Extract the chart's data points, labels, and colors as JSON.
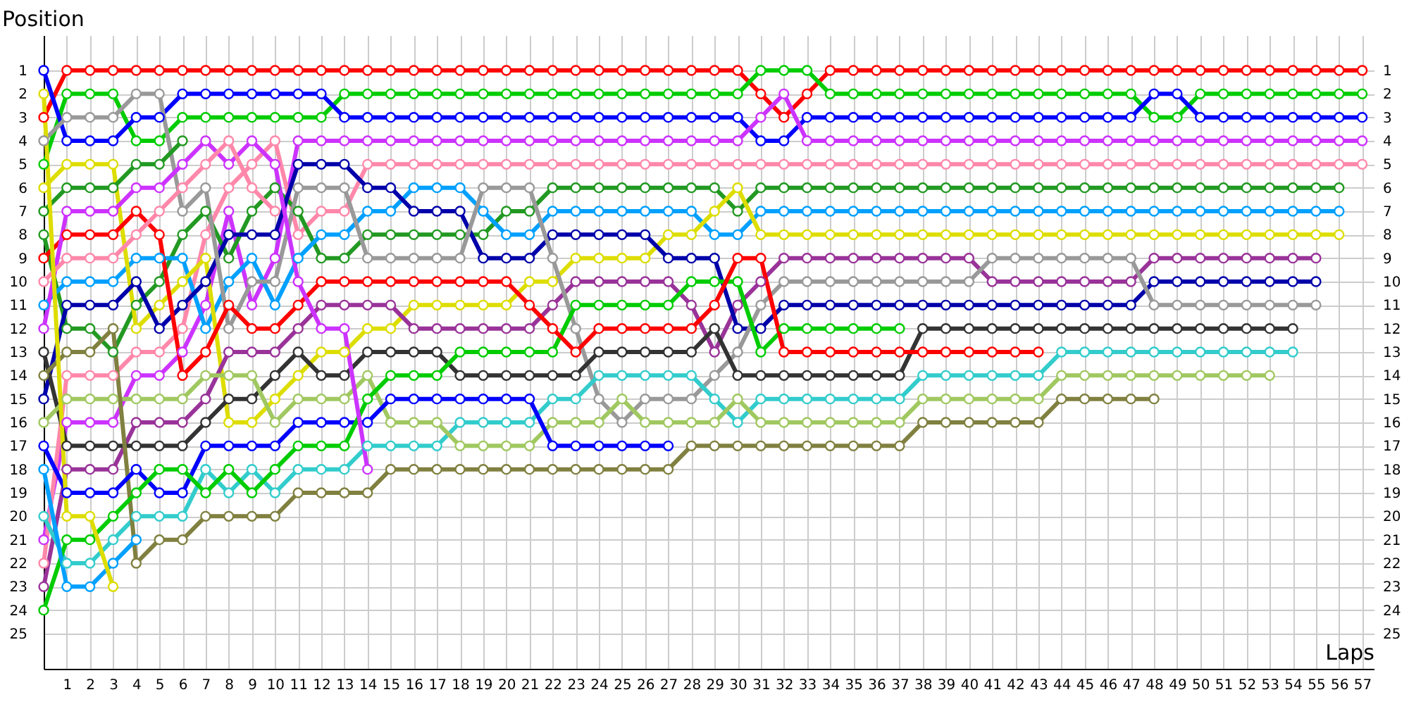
{
  "chart_data": {
    "type": "line",
    "xlabel": "Laps",
    "ylabel": "Position",
    "x": [
      0,
      1,
      2,
      3,
      4,
      5,
      6,
      7,
      8,
      9,
      10,
      11,
      12,
      13,
      14,
      15,
      16,
      17,
      18,
      19,
      20,
      21,
      22,
      23,
      24,
      25,
      26,
      27,
      28,
      29,
      30,
      31,
      32,
      33,
      34,
      35,
      36,
      37,
      38,
      39,
      40,
      41,
      42,
      43,
      44,
      45,
      46,
      47,
      48,
      49,
      50,
      51,
      52,
      53,
      54,
      55,
      56,
      57
    ],
    "xlim": [
      0,
      57.5
    ],
    "xticks": [
      1,
      2,
      3,
      4,
      5,
      6,
      7,
      8,
      9,
      10,
      11,
      12,
      13,
      14,
      15,
      16,
      17,
      18,
      19,
      20,
      21,
      22,
      23,
      24,
      25,
      26,
      27,
      28,
      29,
      30,
      31,
      32,
      33,
      34,
      35,
      36,
      37,
      38,
      39,
      40,
      41,
      42,
      43,
      44,
      45,
      46,
      47,
      48,
      49,
      50,
      51,
      52,
      53,
      54,
      55,
      56,
      57
    ],
    "ylim": [
      26.5,
      -0.5
    ],
    "yticks": [
      1,
      2,
      3,
      4,
      5,
      6,
      7,
      8,
      9,
      10,
      11,
      12,
      13,
      14,
      15,
      16,
      17,
      18,
      19,
      20,
      21,
      22,
      23,
      24,
      25
    ],
    "y2lim": [
      26.5,
      -0.5
    ],
    "y2ticks": [
      1,
      2,
      3,
      4,
      5,
      6,
      7,
      8,
      9,
      10,
      11,
      12,
      13,
      14,
      15,
      16,
      17,
      18,
      19,
      20,
      21,
      22,
      23,
      24,
      25
    ],
    "grid": true,
    "marker": "circle",
    "line_style": "solid",
    "series": [
      {
        "color": "#ff0000",
        "values": [
          3,
          1,
          1,
          1,
          1,
          1,
          1,
          1,
          1,
          1,
          1,
          1,
          1,
          1,
          1,
          1,
          1,
          1,
          1,
          1,
          1,
          1,
          1,
          1,
          1,
          1,
          1,
          1,
          1,
          1,
          1,
          2,
          3,
          2,
          1,
          1,
          1,
          1,
          1,
          1,
          1,
          1,
          1,
          1,
          1,
          1,
          1,
          1,
          1,
          1,
          1,
          1,
          1,
          1,
          1,
          1,
          1,
          1
        ]
      },
      {
        "color": "#00cc00",
        "values": [
          5,
          2,
          2,
          2,
          4,
          4,
          3,
          3,
          3,
          3,
          3,
          3,
          3,
          2,
          2,
          2,
          2,
          2,
          2,
          2,
          2,
          2,
          2,
          2,
          2,
          2,
          2,
          2,
          2,
          2,
          2,
          1,
          1,
          1,
          2,
          2,
          2,
          2,
          2,
          2,
          2,
          2,
          2,
          2,
          2,
          2,
          2,
          2,
          3,
          3,
          2,
          2,
          2,
          2,
          2,
          2,
          2,
          2
        ]
      },
      {
        "color": "#0000ff",
        "values": [
          1,
          4,
          4,
          4,
          3,
          3,
          2,
          2,
          2,
          2,
          2,
          2,
          2,
          3,
          3,
          3,
          3,
          3,
          3,
          3,
          3,
          3,
          3,
          3,
          3,
          3,
          3,
          3,
          3,
          3,
          3,
          4,
          4,
          3,
          3,
          3,
          3,
          3,
          3,
          3,
          3,
          3,
          3,
          3,
          3,
          3,
          3,
          3,
          2,
          2,
          3,
          3,
          3,
          3,
          3,
          3,
          3,
          3
        ]
      },
      {
        "color": "#cc33ff",
        "values": [
          21,
          16,
          16,
          16,
          14,
          14,
          13,
          11,
          7,
          11,
          9,
          4,
          4,
          4,
          4,
          4,
          4,
          4,
          4,
          4,
          4,
          4,
          4,
          4,
          4,
          4,
          4,
          4,
          4,
          4,
          4,
          3,
          2,
          4,
          4,
          4,
          4,
          4,
          4,
          4,
          4,
          4,
          4,
          4,
          4,
          4,
          4,
          4,
          4,
          4,
          4,
          4,
          4,
          4,
          4,
          4,
          4,
          4
        ]
      },
      {
        "color": "#ff88aa",
        "values": [
          22,
          14,
          14,
          14,
          13,
          13,
          12,
          8,
          6,
          5,
          4,
          8,
          7,
          7,
          5,
          5,
          5,
          5,
          5,
          5,
          5,
          5,
          5,
          5,
          5,
          5,
          5,
          5,
          5,
          5,
          5,
          5,
          5,
          5,
          5,
          5,
          5,
          5,
          5,
          5,
          5,
          5,
          5,
          5,
          5,
          5,
          5,
          5,
          5,
          5,
          5,
          5,
          5,
          5,
          5,
          5,
          5,
          5
        ]
      },
      {
        "color": "#229922",
        "values": [
          8,
          12,
          12,
          13,
          11,
          10,
          8,
          7,
          9,
          7,
          6,
          7,
          9,
          9,
          8,
          8,
          8,
          8,
          8,
          8,
          7,
          7,
          6,
          6,
          6,
          6,
          6,
          6,
          6,
          6,
          7,
          6,
          6,
          6,
          6,
          6,
          6,
          6,
          6,
          6,
          6,
          6,
          6,
          6,
          6,
          6,
          6,
          6,
          6,
          6,
          6,
          6,
          6,
          6,
          6,
          6,
          6,
          null
        ]
      },
      {
        "color": "#00a0ff",
        "values": [
          11,
          10,
          10,
          10,
          9,
          9,
          9,
          12,
          10,
          9,
          11,
          9,
          8,
          8,
          7,
          7,
          6,
          6,
          6,
          7,
          8,
          8,
          7,
          7,
          7,
          7,
          7,
          7,
          7,
          8,
          8,
          7,
          7,
          7,
          7,
          7,
          7,
          7,
          7,
          7,
          7,
          7,
          7,
          7,
          7,
          7,
          7,
          7,
          7,
          7,
          7,
          7,
          7,
          7,
          7,
          7,
          7,
          null
        ]
      },
      {
        "color": "#dddd00",
        "values": [
          6,
          5,
          5,
          5,
          12,
          11,
          10,
          9,
          16,
          16,
          15,
          14,
          13,
          13,
          12,
          12,
          11,
          11,
          11,
          11,
          11,
          10,
          10,
          9,
          9,
          9,
          9,
          8,
          8,
          7,
          6,
          8,
          8,
          8,
          8,
          8,
          8,
          8,
          8,
          8,
          8,
          8,
          8,
          8,
          8,
          8,
          8,
          8,
          8,
          8,
          8,
          8,
          8,
          8,
          8,
          8,
          8,
          null
        ]
      },
      {
        "color": "#993399",
        "values": [
          23,
          18,
          18,
          18,
          16,
          16,
          16,
          15,
          13,
          13,
          13,
          12,
          11,
          11,
          11,
          11,
          12,
          12,
          12,
          12,
          12,
          12,
          11,
          10,
          10,
          10,
          10,
          10,
          11,
          13,
          11,
          10,
          9,
          9,
          9,
          9,
          9,
          9,
          9,
          9,
          9,
          10,
          10,
          10,
          10,
          10,
          10,
          10,
          9,
          9,
          9,
          9,
          9,
          9,
          9,
          9,
          null,
          null
        ]
      },
      {
        "color": "#0000aa",
        "values": [
          15,
          11,
          11,
          11,
          10,
          12,
          11,
          10,
          8,
          8,
          8,
          5,
          5,
          5,
          6,
          6,
          7,
          7,
          7,
          9,
          9,
          9,
          8,
          8,
          8,
          8,
          8,
          9,
          9,
          9,
          12,
          12,
          11,
          11,
          11,
          11,
          11,
          11,
          11,
          11,
          11,
          11,
          11,
          11,
          11,
          11,
          11,
          11,
          10,
          10,
          10,
          10,
          10,
          10,
          10,
          10,
          null,
          null
        ]
      },
      {
        "color": "#999999",
        "values": [
          4,
          3,
          3,
          3,
          2,
          2,
          7,
          6,
          12,
          10,
          10,
          6,
          6,
          6,
          9,
          9,
          9,
          9,
          9,
          6,
          6,
          6,
          9,
          12,
          15,
          16,
          15,
          15,
          15,
          14,
          13,
          11,
          10,
          10,
          10,
          10,
          10,
          10,
          10,
          10,
          10,
          9,
          9,
          9,
          9,
          9,
          9,
          9,
          11,
          11,
          11,
          11,
          11,
          11,
          11,
          11,
          null,
          null
        ]
      },
      {
        "color": "#333333",
        "x": [
          0,
          1,
          2,
          3,
          4,
          5,
          6,
          7,
          8,
          9,
          10,
          11,
          12,
          13,
          14,
          15,
          16,
          17,
          18,
          19,
          20,
          21,
          22,
          23,
          24,
          25,
          26,
          27,
          28,
          29,
          30,
          31,
          32,
          33,
          34,
          35,
          36,
          37,
          38,
          39,
          40,
          41,
          42,
          43,
          44,
          45,
          46,
          47,
          48,
          49,
          50,
          51,
          52,
          53,
          54
        ],
        "values": [
          13,
          17,
          17,
          17,
          17,
          17,
          17,
          16,
          15,
          15,
          14,
          13,
          14,
          14,
          13,
          13,
          13,
          13,
          14,
          14,
          14,
          14,
          14,
          14,
          13,
          13,
          13,
          13,
          13,
          12,
          14,
          14,
          14,
          14,
          14,
          14,
          14,
          14,
          12,
          12,
          12,
          12,
          12,
          12,
          12,
          12,
          12,
          12,
          12,
          12,
          12,
          12,
          12,
          12,
          12
        ]
      },
      {
        "color": "#33cccc",
        "x": [
          0,
          1,
          2,
          3,
          4,
          5,
          6,
          7,
          8,
          9,
          10,
          11,
          12,
          13,
          14,
          15,
          16,
          17,
          18,
          19,
          20,
          21,
          22,
          23,
          24,
          25,
          26,
          27,
          28,
          29,
          30,
          31,
          32,
          33,
          34,
          35,
          36,
          37,
          38,
          39,
          40,
          41,
          42,
          43,
          44,
          45,
          46,
          47,
          48,
          49,
          50,
          51,
          52,
          53,
          54
        ],
        "values": [
          20,
          22,
          22,
          21,
          20,
          20,
          20,
          18,
          19,
          18,
          19,
          18,
          18,
          18,
          17,
          17,
          17,
          17,
          16,
          16,
          16,
          16,
          15,
          15,
          14,
          14,
          14,
          14,
          14,
          15,
          16,
          15,
          15,
          15,
          15,
          15,
          15,
          15,
          14,
          14,
          14,
          14,
          14,
          14,
          13,
          13,
          13,
          13,
          13,
          13,
          13,
          13,
          13,
          13,
          13
        ]
      },
      {
        "color": "#a0c860",
        "x": [
          0,
          1,
          2,
          3,
          4,
          5,
          6,
          7,
          8,
          9,
          10,
          11,
          12,
          13,
          14,
          15,
          16,
          17,
          18,
          19,
          20,
          21,
          22,
          23,
          24,
          25,
          26,
          27,
          28,
          29,
          30,
          31,
          32,
          33,
          34,
          35,
          36,
          37,
          38,
          39,
          40,
          41,
          42,
          43,
          44,
          45,
          46,
          47,
          48,
          49,
          50,
          51,
          52,
          53
        ],
        "values": [
          16,
          15,
          15,
          15,
          15,
          15,
          15,
          14,
          14,
          14,
          16,
          15,
          15,
          15,
          14,
          16,
          16,
          16,
          17,
          17,
          17,
          17,
          16,
          16,
          16,
          15,
          16,
          16,
          16,
          16,
          15,
          16,
          16,
          16,
          16,
          16,
          16,
          16,
          15,
          15,
          15,
          15,
          15,
          15,
          14,
          14,
          14,
          14,
          14,
          14,
          14,
          14,
          14,
          14
        ]
      },
      {
        "color": "#808040",
        "x": [
          0,
          1,
          2,
          3,
          4,
          5,
          6,
          7,
          8,
          9,
          10,
          11,
          12,
          13,
          14,
          15,
          16,
          17,
          18,
          19,
          20,
          21,
          22,
          23,
          24,
          25,
          26,
          27,
          28,
          29,
          30,
          31,
          32,
          33,
          34,
          35,
          36,
          37,
          38,
          39,
          40,
          41,
          42,
          43,
          44,
          45,
          46,
          47,
          48
        ],
        "values": [
          14,
          13,
          13,
          12,
          22,
          21,
          21,
          20,
          20,
          20,
          20,
          19,
          19,
          19,
          19,
          18,
          18,
          18,
          18,
          18,
          18,
          18,
          18,
          18,
          18,
          18,
          18,
          18,
          17,
          17,
          17,
          17,
          17,
          17,
          17,
          17,
          17,
          17,
          16,
          16,
          16,
          16,
          16,
          16,
          15,
          15,
          15,
          15,
          15
        ]
      },
      {
        "color": "#0000ff",
        "x": [
          0,
          1,
          2,
          3,
          4,
          5,
          6,
          7,
          8,
          9,
          10,
          11,
          12,
          13,
          14,
          15,
          16,
          17,
          18,
          19,
          20,
          21,
          22,
          23,
          24,
          25,
          26,
          27
        ],
        "values": [
          17,
          19,
          19,
          19,
          18,
          19,
          19,
          17,
          17,
          17,
          17,
          16,
          16,
          16,
          16,
          15,
          15,
          15,
          15,
          15,
          15,
          15,
          17,
          17,
          17,
          17,
          17,
          17
        ]
      },
      {
        "color": "#00cc00",
        "x": [
          0,
          1,
          2,
          3,
          4,
          5,
          6,
          7,
          8,
          9,
          10,
          11,
          12,
          13,
          14,
          15,
          16,
          17,
          18,
          19,
          20,
          21,
          22,
          23,
          24,
          25,
          26,
          27,
          28,
          29,
          30,
          31,
          32,
          33,
          34,
          35,
          36,
          37
        ],
        "values": [
          24,
          21,
          21,
          20,
          19,
          18,
          18,
          19,
          18,
          19,
          18,
          17,
          17,
          17,
          15,
          14,
          14,
          14,
          13,
          13,
          13,
          13,
          13,
          11,
          11,
          11,
          11,
          11,
          10,
          10,
          10,
          13,
          12,
          12,
          12,
          12,
          12,
          12
        ]
      },
      {
        "color": "#ff0000",
        "x": [
          0,
          1,
          2,
          3,
          4,
          5,
          6,
          7,
          8,
          9,
          10,
          11,
          12,
          13,
          14,
          15,
          16,
          17,
          18,
          19,
          20,
          21,
          22,
          23,
          24,
          25,
          26,
          27,
          28,
          29,
          30,
          31,
          32,
          33,
          34,
          35,
          36,
          37,
          38,
          39,
          40,
          41,
          42,
          43
        ],
        "values": [
          9,
          8,
          8,
          8,
          7,
          8,
          14,
          13,
          11,
          12,
          12,
          11,
          10,
          10,
          10,
          10,
          10,
          10,
          10,
          10,
          10,
          11,
          12,
          13,
          12,
          12,
          12,
          12,
          12,
          11,
          9,
          9,
          13,
          13,
          13,
          13,
          13,
          13,
          13,
          13,
          13,
          13,
          13,
          13
        ]
      },
      {
        "color": "#cc33ff",
        "x": [
          0,
          1,
          2,
          3,
          4,
          5,
          6,
          7,
          8,
          9,
          10,
          11,
          12,
          13,
          14
        ],
        "values": [
          12,
          7,
          7,
          7,
          6,
          6,
          5,
          4,
          5,
          4,
          5,
          10,
          12,
          12,
          18
        ]
      },
      {
        "color": "#ff88aa",
        "x": [
          0,
          1,
          2,
          3,
          4,
          5,
          6,
          7,
          8,
          9,
          10
        ],
        "values": [
          10,
          9,
          9,
          9,
          8,
          7,
          6,
          5,
          4,
          6,
          7
        ]
      },
      {
        "color": "#229922",
        "x": [
          0,
          1,
          2,
          3,
          4,
          5,
          6
        ],
        "values": [
          7,
          6,
          6,
          6,
          5,
          5,
          4
        ]
      },
      {
        "color": "#00a0ff",
        "x": [
          0,
          1,
          2,
          3,
          4
        ],
        "values": [
          18,
          23,
          23,
          22,
          21
        ]
      },
      {
        "color": "#dddd00",
        "x": [
          0,
          1,
          2,
          3
        ],
        "values": [
          2,
          20,
          20,
          23
        ]
      }
    ]
  }
}
